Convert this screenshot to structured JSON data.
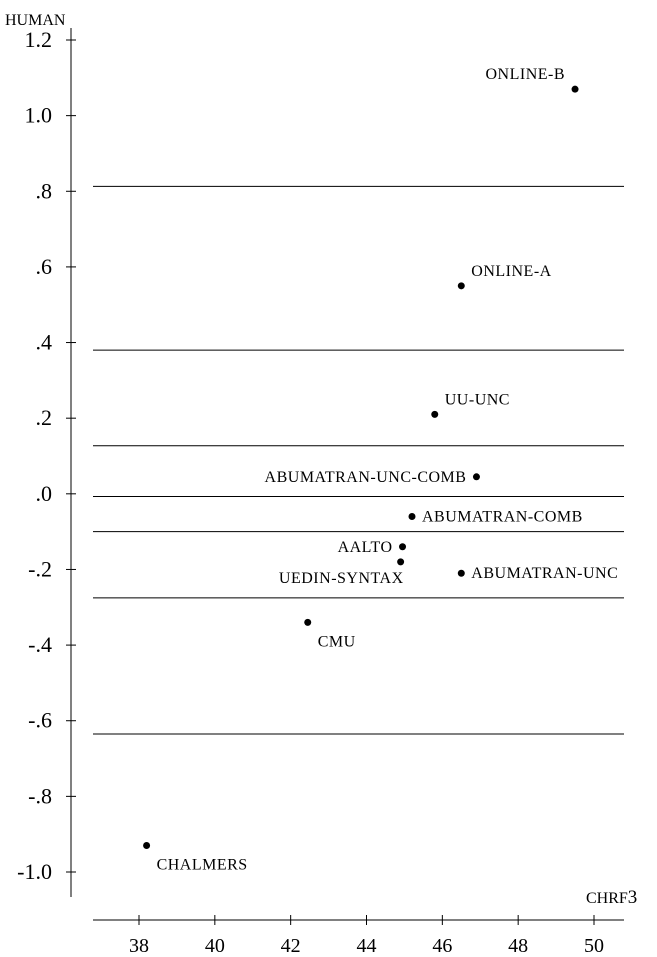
{
  "chart_data": {
    "type": "scatter",
    "xlabel": "CHRF3",
    "ylabel": "HUMAN",
    "xlim": [
      36.8,
      50.8
    ],
    "ylim": [
      -1.08,
      1.2
    ],
    "x_ticks": [
      38,
      40,
      42,
      44,
      46,
      48,
      50
    ],
    "x_tick_labels": [
      "38",
      "40",
      "42",
      "44",
      "46",
      "48",
      "50"
    ],
    "y_ticks": [
      1.2,
      1.0,
      0.8,
      0.6,
      0.4,
      0.2,
      0.0,
      -0.2,
      -0.4,
      -0.6,
      -0.8,
      -1.0
    ],
    "y_tick_labels": [
      "1.2",
      "1.0",
      ".8",
      ".6",
      ".4",
      ".2",
      ".0",
      "-.2",
      "-.4",
      "-.6",
      "-.8",
      "-1.0"
    ],
    "cluster_boundaries": [
      0.813,
      0.38,
      0.127,
      -0.007,
      -0.1,
      -0.275,
      -0.635
    ],
    "points": [
      {
        "label": "ONLINE-B",
        "x": 49.5,
        "y": 1.07,
        "label_pos": "top-left"
      },
      {
        "label": "ONLINE-A",
        "x": 46.5,
        "y": 0.55,
        "label_pos": "top-right"
      },
      {
        "label": "UU-UNC",
        "x": 45.8,
        "y": 0.21,
        "label_pos": "top-right"
      },
      {
        "label": "ABUMATRAN-UNC-COMB",
        "x": 46.9,
        "y": 0.045,
        "label_pos": "left"
      },
      {
        "label": "ABUMATRAN-COMB",
        "x": 45.2,
        "y": -0.06,
        "label_pos": "right"
      },
      {
        "label": "AALTO",
        "x": 44.95,
        "y": -0.14,
        "label_pos": "left"
      },
      {
        "label": "UEDIN-SYNTAX",
        "x": 44.9,
        "y": -0.18,
        "label_pos": "bottom-left"
      },
      {
        "label": "ABUMATRAN-UNC",
        "x": 46.5,
        "y": -0.21,
        "label_pos": "right"
      },
      {
        "label": "CMU",
        "x": 42.45,
        "y": -0.34,
        "label_pos": "bottom-right"
      },
      {
        "label": "CHALMERS",
        "x": 38.2,
        "y": -0.93,
        "label_pos": "bottom-right"
      }
    ]
  }
}
